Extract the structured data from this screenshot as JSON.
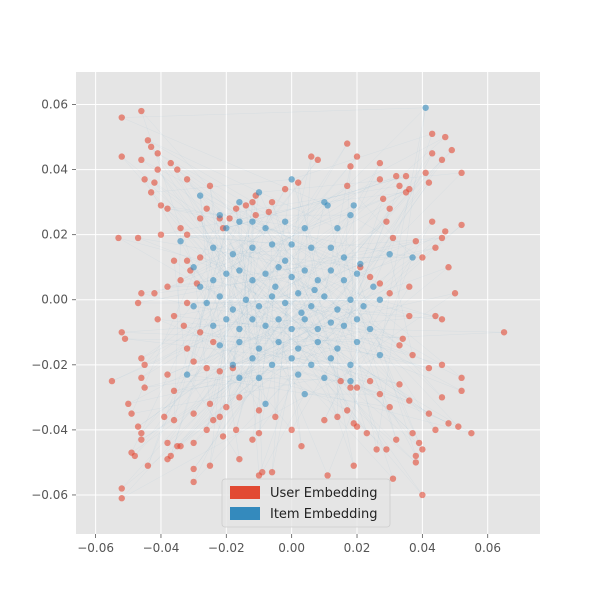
{
  "chart_data": {
    "type": "scatter",
    "title": "",
    "xlabel": "",
    "ylabel": "",
    "xlim": [
      -0.066,
      0.076
    ],
    "ylim": [
      -0.072,
      0.07
    ],
    "grid": true,
    "legend_position": "bottom-center",
    "x_ticks": [
      -0.06,
      -0.04,
      -0.02,
      0.0,
      0.02,
      0.04,
      0.06
    ],
    "x_tick_labels": [
      "−0.06",
      "−0.04",
      "−0.02",
      "0.00",
      "0.02",
      "0.04",
      "0.06"
    ],
    "y_ticks": [
      -0.06,
      -0.04,
      -0.02,
      0.0,
      0.02,
      0.04,
      0.06
    ],
    "y_tick_labels": [
      "−0.06",
      "−0.04",
      "−0.02",
      "0.00",
      "0.02",
      "0.04",
      "0.06"
    ],
    "colors": {
      "plot_background": "#e5e5e5",
      "grid": "#ffffff",
      "tick_text": "#555555",
      "user": "#e24a33",
      "item": "#348abd",
      "edges": "#348abd"
    },
    "series": [
      {
        "name": "User Embedding",
        "color": "#e24a33",
        "points": [
          [
            -0.052,
            0.056
          ],
          [
            -0.046,
            0.058
          ],
          [
            -0.044,
            0.049
          ],
          [
            -0.043,
            0.047
          ],
          [
            -0.041,
            0.045
          ],
          [
            -0.052,
            0.044
          ],
          [
            -0.046,
            0.043
          ],
          [
            -0.037,
            0.042
          ],
          [
            -0.035,
            0.04
          ],
          [
            -0.041,
            0.04
          ],
          [
            -0.042,
            0.036
          ],
          [
            -0.045,
            0.037
          ],
          [
            -0.032,
            0.037
          ],
          [
            -0.043,
            0.033
          ],
          [
            -0.04,
            0.029
          ],
          [
            -0.038,
            0.028
          ],
          [
            -0.04,
            0.02
          ],
          [
            -0.034,
            0.022
          ],
          [
            -0.032,
            0.02
          ],
          [
            -0.053,
            0.019
          ],
          [
            -0.047,
            0.019
          ],
          [
            -0.025,
            0.035
          ],
          [
            -0.026,
            0.028
          ],
          [
            -0.028,
            0.025
          ],
          [
            -0.022,
            0.025
          ],
          [
            -0.036,
            0.012
          ],
          [
            -0.032,
            0.012
          ],
          [
            -0.031,
            0.009
          ],
          [
            -0.028,
            0.013
          ],
          [
            -0.029,
            0.005
          ],
          [
            -0.034,
            0.006
          ],
          [
            -0.038,
            0.004
          ],
          [
            -0.042,
            0.002
          ],
          [
            -0.046,
            0.002
          ],
          [
            -0.047,
            -0.001
          ],
          [
            -0.032,
            -0.001
          ],
          [
            -0.036,
            -0.005
          ],
          [
            -0.041,
            -0.006
          ],
          [
            -0.052,
            -0.01
          ],
          [
            -0.051,
            -0.012
          ],
          [
            -0.033,
            -0.008
          ],
          [
            -0.028,
            -0.01
          ],
          [
            -0.032,
            -0.015
          ],
          [
            -0.024,
            -0.013
          ],
          [
            -0.03,
            -0.019
          ],
          [
            -0.046,
            -0.018
          ],
          [
            -0.045,
            -0.02
          ],
          [
            -0.055,
            -0.025
          ],
          [
            -0.046,
            -0.024
          ],
          [
            -0.038,
            -0.023
          ],
          [
            -0.026,
            -0.021
          ],
          [
            -0.022,
            -0.022
          ],
          [
            -0.018,
            -0.021
          ],
          [
            -0.045,
            -0.027
          ],
          [
            -0.036,
            -0.028
          ],
          [
            -0.05,
            -0.032
          ],
          [
            -0.049,
            -0.035
          ],
          [
            -0.039,
            -0.036
          ],
          [
            -0.036,
            -0.037
          ],
          [
            -0.03,
            -0.035
          ],
          [
            -0.025,
            -0.032
          ],
          [
            -0.024,
            -0.037
          ],
          [
            -0.026,
            -0.04
          ],
          [
            -0.047,
            -0.039
          ],
          [
            -0.046,
            -0.041
          ],
          [
            -0.046,
            -0.043
          ],
          [
            -0.038,
            -0.044
          ],
          [
            -0.035,
            -0.045
          ],
          [
            -0.034,
            -0.045
          ],
          [
            -0.03,
            -0.044
          ],
          [
            -0.021,
            -0.042
          ],
          [
            -0.017,
            -0.04
          ],
          [
            -0.012,
            -0.043
          ],
          [
            -0.01,
            -0.041
          ],
          [
            -0.049,
            -0.047
          ],
          [
            -0.048,
            -0.048
          ],
          [
            -0.044,
            -0.051
          ],
          [
            -0.038,
            -0.049
          ],
          [
            -0.037,
            -0.048
          ],
          [
            -0.03,
            -0.052
          ],
          [
            -0.025,
            -0.051
          ],
          [
            -0.052,
            -0.058
          ],
          [
            -0.052,
            -0.061
          ],
          [
            -0.03,
            -0.056
          ],
          [
            -0.016,
            -0.049
          ],
          [
            -0.009,
            -0.053
          ],
          [
            -0.01,
            -0.054
          ],
          [
            -0.022,
            -0.036
          ],
          [
            -0.02,
            -0.033
          ],
          [
            -0.016,
            -0.03
          ],
          [
            -0.01,
            -0.034
          ],
          [
            -0.005,
            -0.036
          ],
          [
            0.0,
            -0.04
          ],
          [
            0.003,
            -0.045
          ],
          [
            0.01,
            -0.037
          ],
          [
            0.014,
            -0.036
          ],
          [
            0.017,
            -0.034
          ],
          [
            0.019,
            -0.038
          ],
          [
            0.02,
            -0.039
          ],
          [
            0.023,
            -0.041
          ],
          [
            0.026,
            -0.046
          ],
          [
            0.029,
            -0.046
          ],
          [
            0.032,
            -0.043
          ],
          [
            0.037,
            -0.041
          ],
          [
            0.039,
            -0.044
          ],
          [
            0.04,
            -0.046
          ],
          [
            0.038,
            -0.048
          ],
          [
            0.038,
            -0.05
          ],
          [
            0.044,
            -0.04
          ],
          [
            0.048,
            -0.038
          ],
          [
            0.051,
            -0.039
          ],
          [
            0.055,
            -0.041
          ],
          [
            0.04,
            -0.06
          ],
          [
            0.031,
            -0.055
          ],
          [
            0.019,
            -0.051
          ],
          [
            0.011,
            -0.054
          ],
          [
            -0.006,
            -0.053
          ],
          [
            0.042,
            -0.035
          ],
          [
            0.046,
            -0.03
          ],
          [
            0.052,
            -0.028
          ],
          [
            0.052,
            -0.024
          ],
          [
            0.042,
            -0.021
          ],
          [
            0.046,
            -0.02
          ],
          [
            0.033,
            -0.026
          ],
          [
            0.036,
            -0.031
          ],
          [
            0.03,
            -0.033
          ],
          [
            0.027,
            -0.029
          ],
          [
            0.024,
            -0.025
          ],
          [
            0.02,
            -0.027
          ],
          [
            0.018,
            -0.027
          ],
          [
            0.015,
            -0.025
          ],
          [
            0.037,
            -0.017
          ],
          [
            0.033,
            -0.014
          ],
          [
            0.034,
            -0.012
          ],
          [
            0.036,
            -0.005
          ],
          [
            0.046,
            -0.006
          ],
          [
            0.044,
            -0.005
          ],
          [
            0.065,
            -0.01
          ],
          [
            0.048,
            0.01
          ],
          [
            0.05,
            0.002
          ],
          [
            0.036,
            0.004
          ],
          [
            0.03,
            0.002
          ],
          [
            0.027,
            0.005
          ],
          [
            0.024,
            0.007
          ],
          [
            0.021,
            0.01
          ],
          [
            0.04,
            0.013
          ],
          [
            0.046,
            0.019
          ],
          [
            0.044,
            0.016
          ],
          [
            0.038,
            0.018
          ],
          [
            0.031,
            0.019
          ],
          [
            0.029,
            0.024
          ],
          [
            0.052,
            0.023
          ],
          [
            0.047,
            0.021
          ],
          [
            0.043,
            0.024
          ],
          [
            0.03,
            0.028
          ],
          [
            0.028,
            0.031
          ],
          [
            0.033,
            0.035
          ],
          [
            0.035,
            0.033
          ],
          [
            0.035,
            0.038
          ],
          [
            0.032,
            0.038
          ],
          [
            0.027,
            0.037
          ],
          [
            0.027,
            0.042
          ],
          [
            0.02,
            0.044
          ],
          [
            0.018,
            0.041
          ],
          [
            0.017,
            0.048
          ],
          [
            0.042,
            0.036
          ],
          [
            0.041,
            0.039
          ],
          [
            0.043,
            0.045
          ],
          [
            0.046,
            0.043
          ],
          [
            0.049,
            0.046
          ],
          [
            0.052,
            0.039
          ],
          [
            0.047,
            0.05
          ],
          [
            0.043,
            0.051
          ],
          [
            0.036,
            0.034
          ],
          [
            0.017,
            0.035
          ],
          [
            0.006,
            0.044
          ],
          [
            0.008,
            0.043
          ],
          [
            0.002,
            0.036
          ],
          [
            -0.002,
            0.034
          ],
          [
            -0.006,
            0.03
          ],
          [
            -0.011,
            0.032
          ],
          [
            -0.012,
            0.03
          ],
          [
            -0.014,
            0.029
          ],
          [
            -0.017,
            0.028
          ],
          [
            -0.019,
            0.025
          ],
          [
            -0.021,
            0.022
          ],
          [
            -0.011,
            0.026
          ],
          [
            -0.007,
            0.027
          ]
        ]
      },
      {
        "name": "Item Embedding",
        "color": "#348abd",
        "points": [
          [
            0.041,
            0.059
          ],
          [
            -0.028,
            0.032
          ],
          [
            -0.016,
            0.03
          ],
          [
            -0.01,
            0.033
          ],
          [
            0.0,
            0.037
          ],
          [
            -0.022,
            0.026
          ],
          [
            -0.02,
            0.022
          ],
          [
            -0.016,
            0.024
          ],
          [
            -0.012,
            0.024
          ],
          [
            -0.008,
            0.022
          ],
          [
            -0.002,
            0.024
          ],
          [
            0.004,
            0.022
          ],
          [
            0.01,
            0.03
          ],
          [
            0.011,
            0.029
          ],
          [
            0.014,
            0.022
          ],
          [
            0.018,
            0.026
          ],
          [
            0.019,
            0.029
          ],
          [
            0.03,
            0.014
          ],
          [
            0.037,
            0.013
          ],
          [
            -0.034,
            0.018
          ],
          [
            -0.03,
            0.01
          ],
          [
            -0.024,
            0.016
          ],
          [
            -0.018,
            0.014
          ],
          [
            -0.012,
            0.016
          ],
          [
            -0.006,
            0.017
          ],
          [
            0.0,
            0.017
          ],
          [
            0.006,
            0.016
          ],
          [
            0.012,
            0.016
          ],
          [
            0.016,
            0.013
          ],
          [
            0.021,
            0.011
          ],
          [
            -0.028,
            0.004
          ],
          [
            -0.024,
            0.006
          ],
          [
            -0.02,
            0.008
          ],
          [
            -0.016,
            0.009
          ],
          [
            -0.012,
            0.006
          ],
          [
            -0.008,
            0.008
          ],
          [
            -0.004,
            0.01
          ],
          [
            0.0,
            0.007
          ],
          [
            0.004,
            0.009
          ],
          [
            0.008,
            0.006
          ],
          [
            0.012,
            0.009
          ],
          [
            0.016,
            0.006
          ],
          [
            0.02,
            0.008
          ],
          [
            0.025,
            0.004
          ],
          [
            -0.03,
            -0.002
          ],
          [
            -0.026,
            -0.001
          ],
          [
            -0.022,
            0.001
          ],
          [
            -0.018,
            -0.003
          ],
          [
            -0.014,
            0.0
          ],
          [
            -0.01,
            -0.002
          ],
          [
            -0.006,
            0.001
          ],
          [
            -0.002,
            -0.001
          ],
          [
            0.002,
            0.002
          ],
          [
            0.006,
            -0.002
          ],
          [
            0.01,
            0.001
          ],
          [
            0.014,
            -0.003
          ],
          [
            0.018,
            0.0
          ],
          [
            0.022,
            -0.002
          ],
          [
            0.027,
            0.0
          ],
          [
            -0.024,
            -0.008
          ],
          [
            -0.02,
            -0.006
          ],
          [
            -0.016,
            -0.009
          ],
          [
            -0.012,
            -0.006
          ],
          [
            -0.008,
            -0.008
          ],
          [
            -0.004,
            -0.006
          ],
          [
            0.0,
            -0.009
          ],
          [
            0.004,
            -0.006
          ],
          [
            0.008,
            -0.009
          ],
          [
            0.012,
            -0.007
          ],
          [
            0.016,
            -0.008
          ],
          [
            0.02,
            -0.006
          ],
          [
            0.024,
            -0.009
          ],
          [
            -0.022,
            -0.014
          ],
          [
            -0.016,
            -0.013
          ],
          [
            -0.01,
            -0.015
          ],
          [
            -0.004,
            -0.013
          ],
          [
            0.002,
            -0.015
          ],
          [
            0.008,
            -0.013
          ],
          [
            0.014,
            -0.015
          ],
          [
            0.02,
            -0.013
          ],
          [
            -0.018,
            -0.02
          ],
          [
            -0.012,
            -0.018
          ],
          [
            -0.006,
            -0.02
          ],
          [
            0.0,
            -0.018
          ],
          [
            0.006,
            -0.02
          ],
          [
            0.012,
            -0.018
          ],
          [
            0.018,
            -0.02
          ],
          [
            0.027,
            -0.017
          ],
          [
            -0.032,
            -0.023
          ],
          [
            -0.016,
            -0.024
          ],
          [
            -0.01,
            -0.024
          ],
          [
            0.002,
            -0.023
          ],
          [
            0.01,
            -0.024
          ],
          [
            0.018,
            -0.025
          ],
          [
            -0.008,
            -0.032
          ],
          [
            0.004,
            -0.029
          ],
          [
            0.007,
            0.003
          ],
          [
            -0.005,
            0.004
          ],
          [
            0.003,
            -0.004
          ],
          [
            -0.002,
            0.012
          ]
        ]
      }
    ],
    "legend": [
      "User Embedding",
      "Item Embedding"
    ]
  }
}
